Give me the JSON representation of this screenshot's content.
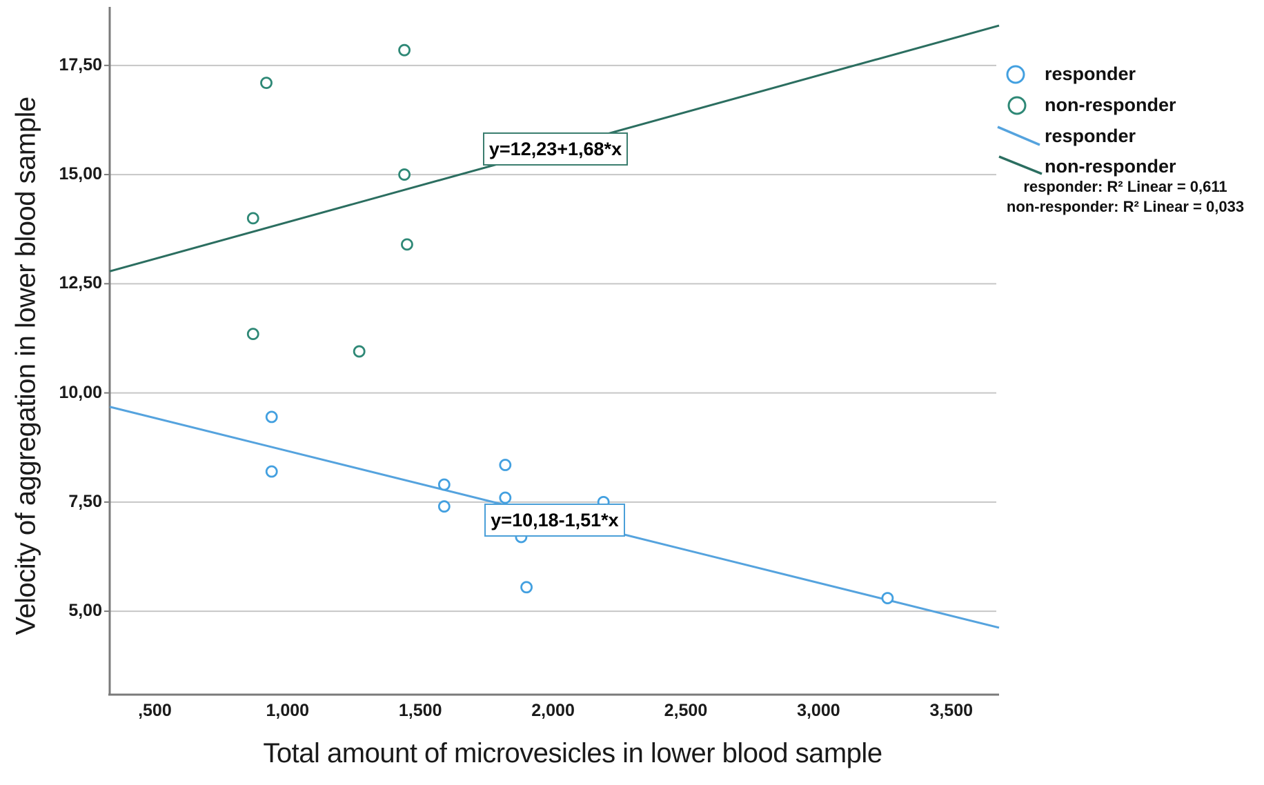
{
  "figure": {
    "x_axis_title": "Total amount of microvesicles in lower blood sample",
    "y_axis_title": "Velocity of aggregation in lower blood sample"
  },
  "legend": {
    "marker_items": [
      {
        "label": "responder",
        "color": "#43a0e0"
      },
      {
        "label": "non-responder",
        "color": "#2e8876"
      }
    ],
    "line_items": [
      {
        "label": "responder",
        "color": "#55a3de"
      },
      {
        "label": "non-responder",
        "color": "#2b6e60"
      }
    ]
  },
  "annotations": {
    "r2_responder": "responder: R² Linear = 0,611",
    "r2_non_responder": "non-responder: R² Linear = 0,033"
  },
  "colors": {
    "grid": "#c6c6c6",
    "axis": "#7a7a7a",
    "responder_marker": "#43a0e0",
    "responder_line": "#55a3de",
    "non_responder_marker": "#2e8876",
    "non_responder_line": "#2b6e60"
  },
  "chart_data": {
    "type": "scatter",
    "title": "",
    "xlabel": "Total amount of microvesicles in lower blood sample",
    "ylabel": "Velocity of aggregation in lower blood sample",
    "xlim": [
      0.33,
      3.68
    ],
    "ylim": [
      3.09,
      18.84
    ],
    "grid": "horizontal",
    "legend_position": "right",
    "x_ticks": [
      {
        "label": ",500",
        "value": 0.5
      },
      {
        "label": "1,000",
        "value": 1.0
      },
      {
        "label": "1,500",
        "value": 1.5
      },
      {
        "label": "2,000",
        "value": 2.0
      },
      {
        "label": "2,500",
        "value": 2.5
      },
      {
        "label": "3,000",
        "value": 3.0
      },
      {
        "label": "3,500",
        "value": 3.5
      }
    ],
    "y_ticks": [
      {
        "label": "17,50",
        "value": 17.5
      },
      {
        "label": "15,00",
        "value": 15.0
      },
      {
        "label": "12,50",
        "value": 12.5
      },
      {
        "label": "10,00",
        "value": 10.0
      },
      {
        "label": "7,50",
        "value": 7.5
      },
      {
        "label": "5,00",
        "value": 5.0
      }
    ],
    "series": [
      {
        "name": "responder",
        "marker_color": "#43a0e0",
        "line_color": "#55a3de",
        "equation_label": "y=10,18-1,51*x",
        "intercept": 10.18,
        "slope": -1.51,
        "r2": "0,611",
        "points": [
          [
            0.94,
            9.45
          ],
          [
            0.94,
            8.2
          ],
          [
            1.59,
            7.9
          ],
          [
            1.59,
            7.4
          ],
          [
            1.82,
            8.35
          ],
          [
            1.82,
            7.6
          ],
          [
            2.19,
            7.5
          ],
          [
            1.88,
            6.7
          ],
          [
            1.9,
            5.55
          ],
          [
            3.26,
            5.3
          ]
        ]
      },
      {
        "name": "non-responder",
        "marker_color": "#2e8876",
        "line_color": "#2b6e60",
        "equation_label": "y=12,23+1,68*x",
        "intercept": 12.23,
        "slope": 1.68,
        "r2": "0,033",
        "points": [
          [
            0.92,
            17.1
          ],
          [
            1.44,
            17.85
          ],
          [
            1.44,
            15.0
          ],
          [
            0.87,
            14.0
          ],
          [
            1.45,
            13.4
          ],
          [
            0.87,
            11.35
          ],
          [
            1.27,
            10.95
          ]
        ]
      }
    ]
  }
}
